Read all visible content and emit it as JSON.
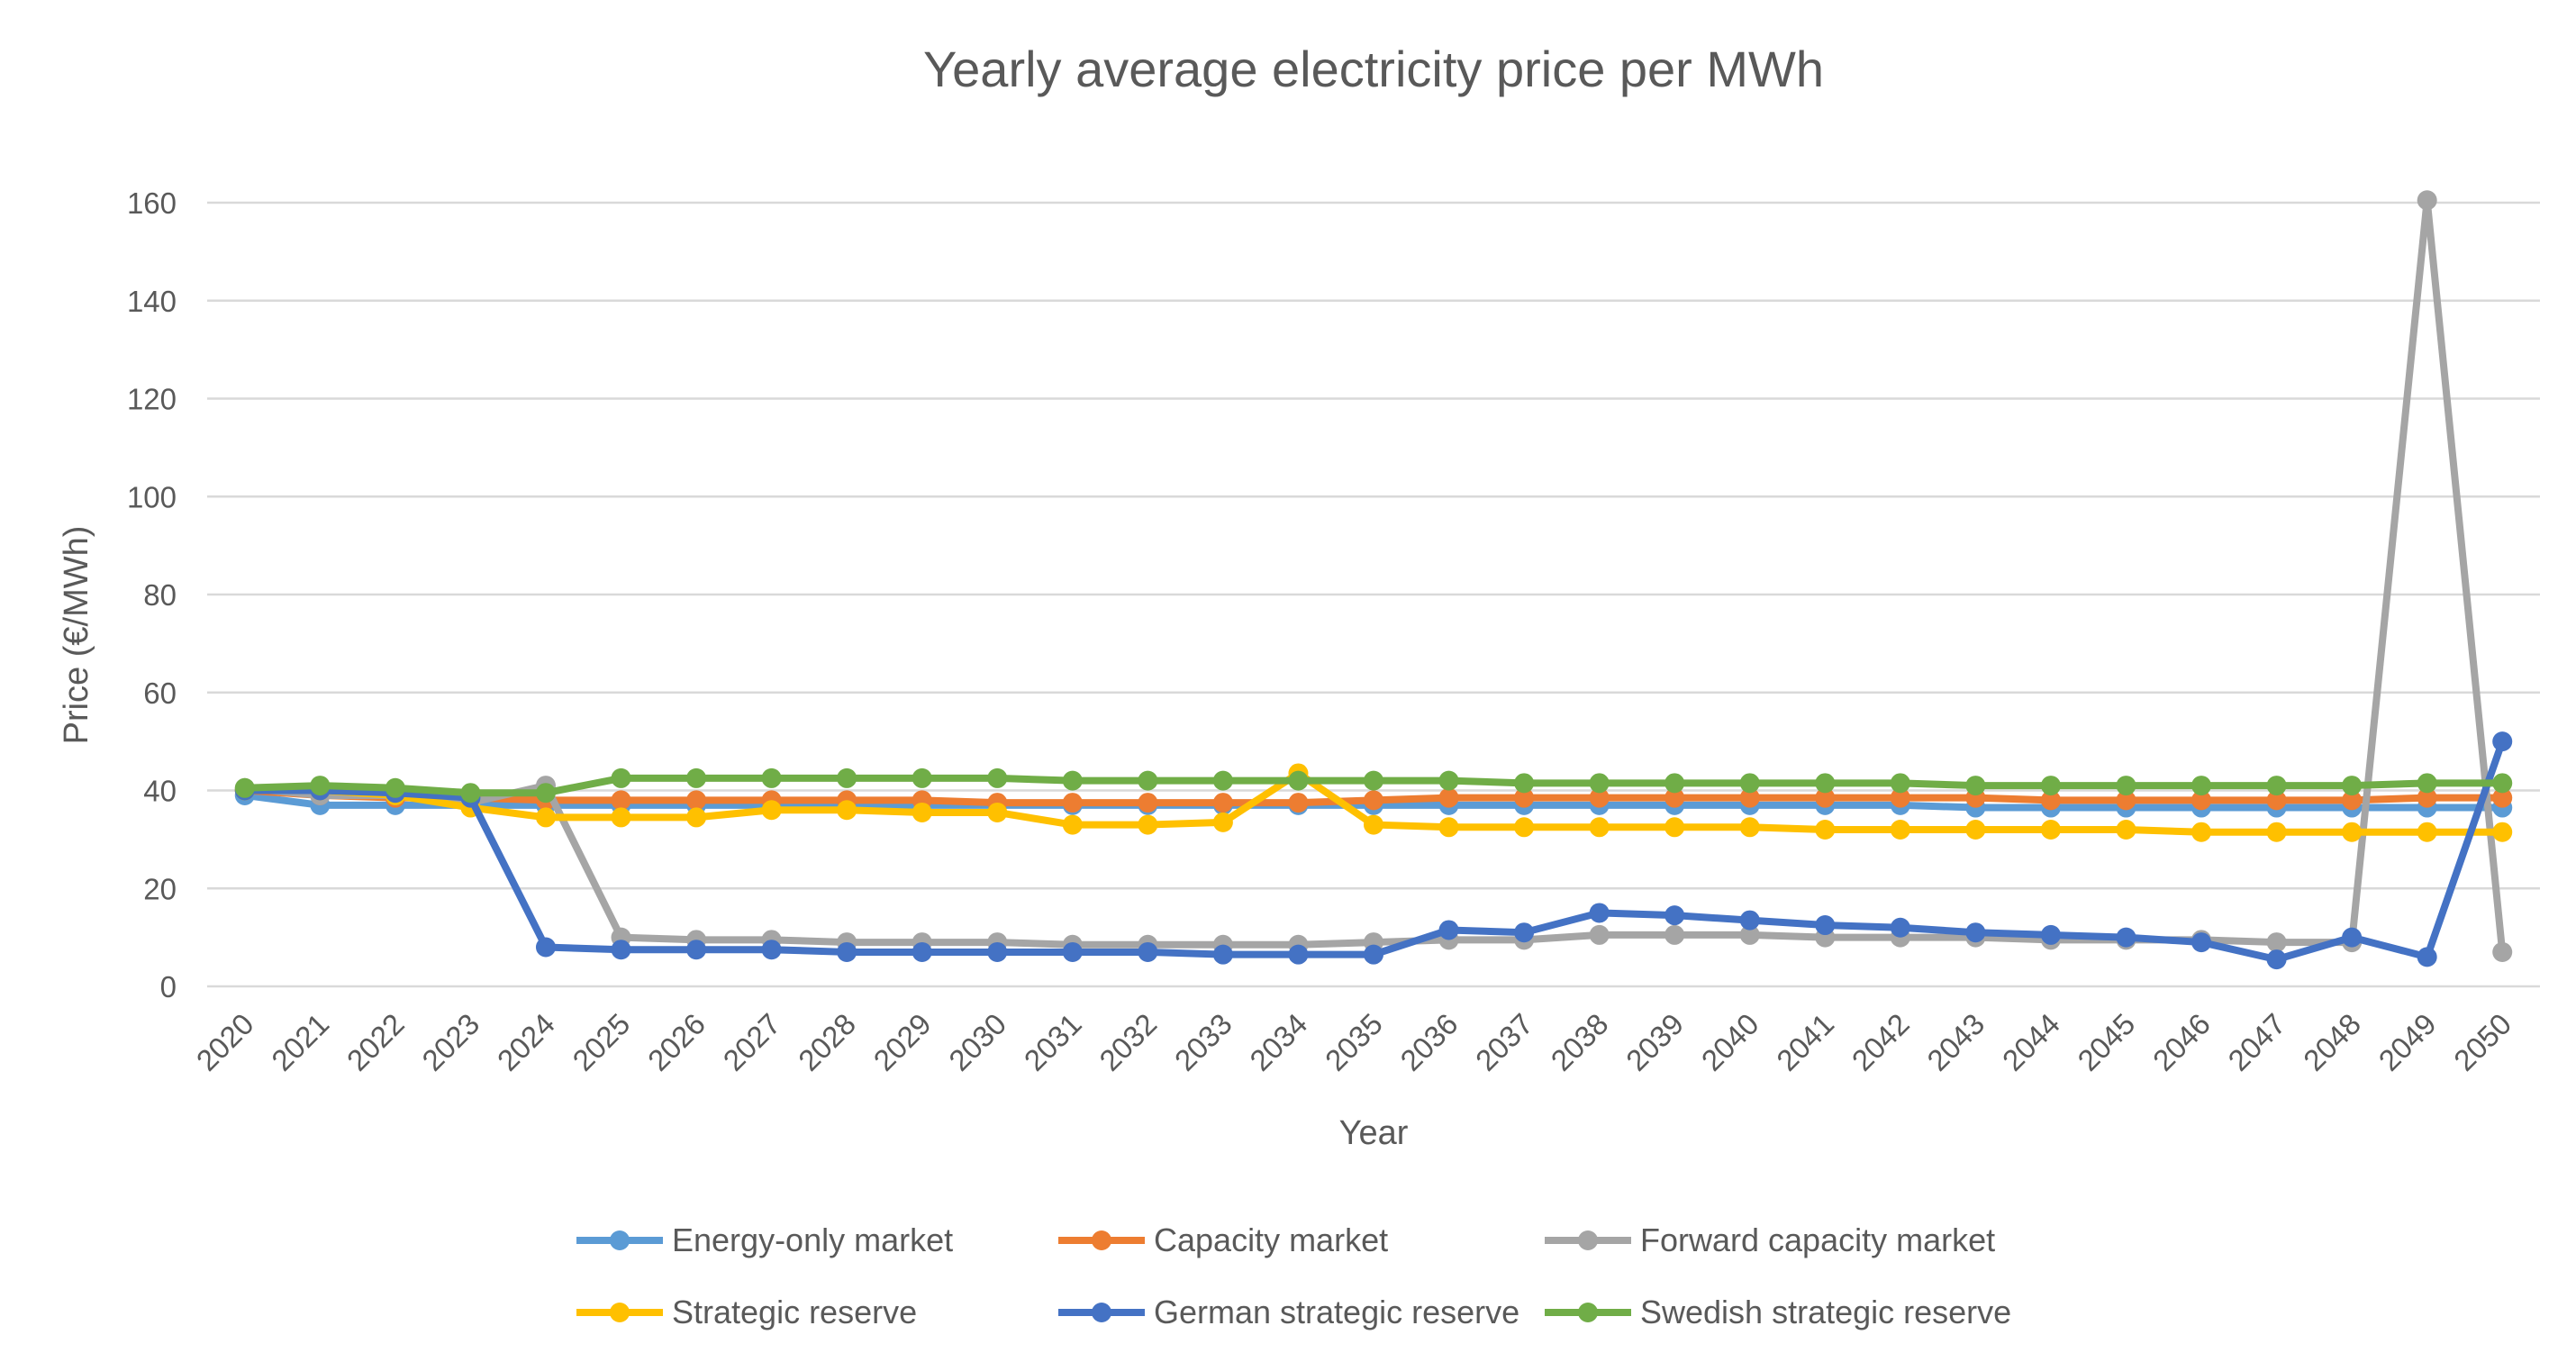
{
  "chart_data": {
    "type": "line",
    "title": "Yearly average electricity price per MWh",
    "xlabel": "Year",
    "ylabel": "Price (€/MWh)",
    "ylim": [
      0,
      160
    ],
    "yticks": [
      0,
      20,
      40,
      60,
      80,
      100,
      120,
      140,
      160
    ],
    "grid": "horizontal",
    "legend_position": "bottom",
    "categories": [
      "2020",
      "2021",
      "2022",
      "2023",
      "2024",
      "2025",
      "2026",
      "2027",
      "2028",
      "2029",
      "2030",
      "2031",
      "2032",
      "2033",
      "2034",
      "2035",
      "2036",
      "2037",
      "2038",
      "2039",
      "2040",
      "2041",
      "2042",
      "2043",
      "2044",
      "2045",
      "2046",
      "2047",
      "2048",
      "2049",
      "2050"
    ],
    "series": [
      {
        "name": "Energy-only market",
        "color": "#5B9BD5",
        "values": [
          39,
          37,
          37,
          37,
          37,
          37,
          37,
          37,
          37,
          37,
          37,
          37,
          37,
          37,
          37,
          37,
          37,
          37,
          37,
          37,
          37,
          37,
          37,
          36.5,
          36.5,
          36.5,
          36.5,
          36.5,
          36.5,
          36.5,
          36.5
        ]
      },
      {
        "name": "Capacity market",
        "color": "#ED7D31",
        "values": [
          40,
          39,
          38.5,
          38.5,
          38,
          38,
          38,
          38,
          38,
          38,
          37.5,
          37.5,
          37.5,
          37.5,
          37.5,
          38,
          38.5,
          38.5,
          38.5,
          38.5,
          38.5,
          38.5,
          38.5,
          38.5,
          38,
          38,
          38,
          38,
          38,
          38.5,
          38.5
        ]
      },
      {
        "name": "Forward capacity market",
        "color": "#A5A5A5",
        "values": [
          40.5,
          39,
          39,
          37.5,
          41,
          10,
          9.5,
          9.5,
          9,
          9,
          9,
          8.5,
          8.5,
          8.5,
          8.5,
          9,
          9.5,
          9.5,
          10.5,
          10.5,
          10.5,
          10,
          10,
          10,
          9.5,
          9.5,
          9.5,
          9,
          9,
          160.5,
          7
        ]
      },
      {
        "name": "Strategic reserve",
        "color": "#FFC000",
        "values": [
          40,
          40,
          39,
          36.5,
          34.5,
          34.5,
          34.5,
          36,
          36,
          35.5,
          35.5,
          33,
          33,
          33.5,
          43.5,
          33,
          32.5,
          32.5,
          32.5,
          32.5,
          32.5,
          32,
          32,
          32,
          32,
          32,
          31.5,
          31.5,
          31.5,
          31.5,
          31.5
        ]
      },
      {
        "name": "German strategic reserve",
        "color": "#4472C4",
        "values": [
          40,
          40,
          39.5,
          38.5,
          8,
          7.5,
          7.5,
          7.5,
          7,
          7,
          7,
          7,
          7,
          6.5,
          6.5,
          6.5,
          11.5,
          11,
          15,
          14.5,
          13.5,
          12.5,
          12,
          11,
          10.5,
          10,
          9,
          5.5,
          10,
          6,
          50
        ]
      },
      {
        "name": "Swedish strategic reserve",
        "color": "#70AD47",
        "values": [
          40.5,
          41,
          40.5,
          39.5,
          39.5,
          42.5,
          42.5,
          42.5,
          42.5,
          42.5,
          42.5,
          42,
          42,
          42,
          42,
          42,
          42,
          41.5,
          41.5,
          41.5,
          41.5,
          41.5,
          41.5,
          41,
          41,
          41,
          41,
          41,
          41,
          41.5,
          41.5
        ]
      }
    ]
  }
}
